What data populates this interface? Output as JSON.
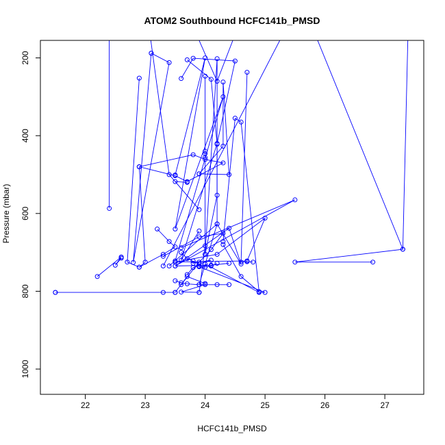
{
  "chart_data": {
    "type": "line",
    "title": "ATOM2 Southbound HCFC141b_PMSD",
    "xlabel": "HCFC141b_PMSD",
    "ylabel": "Pressure (mbar)",
    "xlim": [
      21.25,
      27.65
    ],
    "ylim": [
      1065,
      155
    ],
    "y_reversed": true,
    "x_ticks": [
      22,
      23,
      24,
      25,
      26,
      27
    ],
    "y_ticks": [
      200,
      400,
      600,
      800,
      1000
    ],
    "grid": false,
    "legend": "none",
    "marker": "open-circle",
    "color": "#0000ff",
    "series": [
      {
        "x": [
          22.4,
          22.4
        ],
        "y": [
          50,
          587
        ]
      },
      {
        "x": [
          22.6,
          22.5,
          22.6,
          22.2,
          22.6
        ],
        "y": [
          715,
          733,
          712,
          762,
          712
        ]
      },
      {
        "x": [
          21.5,
          23.3,
          23.5,
          21.5
        ],
        "y": [
          803,
          803,
          803,
          803
        ]
      },
      {
        "x": [
          23.1,
          23.4,
          22.8,
          23.1
        ],
        "y": [
          188,
          212,
          726,
          188
        ]
      },
      {
        "x": [
          22.9,
          22.7,
          22.9,
          23.0,
          22.9
        ],
        "y": [
          252,
          725,
          738,
          725,
          480
        ]
      },
      {
        "x": [
          22.9,
          23.5,
          23.7,
          24.3,
          24.0,
          23.8,
          22.9
        ],
        "y": [
          480,
          503,
          518,
          470,
          461,
          449,
          480
        ]
      },
      {
        "x": [
          23.2,
          23.4,
          23.5,
          23.3,
          22.9
        ],
        "y": [
          640,
          672,
          686,
          705,
          738
        ]
      },
      {
        "x": [
          23.5,
          24.0,
          23.5,
          24.3,
          23.5
        ],
        "y": [
          501,
          200,
          640,
          300,
          722
        ]
      },
      {
        "x": [
          23.6,
          23.8,
          24.5,
          24.2,
          23.6,
          23.9
        ],
        "y": [
          253,
          201,
          208,
          420,
          720,
          645
        ]
      },
      {
        "x": [
          23.7,
          24.1,
          24.2,
          24.2,
          23.9
        ],
        "y": [
          205,
          255,
          422,
          627,
          783
        ]
      },
      {
        "x": [
          23.3,
          23.9,
          24.3,
          24.1,
          23.9,
          23.6
        ],
        "y": [
          710,
          660,
          651,
          693,
          725,
          783
        ]
      },
      {
        "x": [
          23.5,
          23.6,
          23.7,
          23.9,
          24.2,
          24.4
        ],
        "y": [
          773,
          778,
          781,
          783,
          783,
          783
        ]
      },
      {
        "x": [
          23.9,
          23.6,
          24.0,
          24.0,
          23.7,
          23.5
        ],
        "y": [
          803,
          802,
          783,
          780,
          762,
          803
        ]
      },
      {
        "x": [
          24.0,
          24.0,
          24.0,
          24.0,
          24.0,
          23.9
        ],
        "y": [
          247,
          440,
          446,
          456,
          683,
          803
        ]
      },
      {
        "x": [
          23.9,
          24.3,
          24.3,
          24.4,
          23.9
        ],
        "y": [
          498,
          427,
          262,
          500,
          498
        ]
      },
      {
        "x": [
          24.0,
          24.2,
          24.2,
          24.0
        ],
        "y": [
          705,
          202,
          553,
          705
        ]
      },
      {
        "x": [
          24.3,
          24.5,
          24.6,
          24.9,
          24.6,
          24.3
        ],
        "y": [
          672,
          355,
          365,
          801,
          762,
          680
        ]
      },
      {
        "x": [
          24.7,
          24.6,
          24.7,
          24.8
        ],
        "y": [
          237,
          725,
          724,
          725
        ]
      },
      {
        "x": [
          23.5,
          24.7,
          25.0,
          24.2,
          23.5
        ],
        "y": [
          725,
          722,
          612,
          705,
          725
        ]
      },
      {
        "x": [
          23.6,
          25.5,
          23.5,
          24.1,
          24.4
        ],
        "y": [
          688,
          565,
          735,
          733,
          728
        ]
      },
      {
        "x": [
          24.0,
          24.9,
          25.0,
          23.9
        ],
        "y": [
          730,
          803,
          803,
          737
        ]
      },
      {
        "x": [
          23.3,
          25.6,
          27.3,
          25.5,
          26.8
        ],
        "y": [
          735,
          50,
          692,
          725,
          725
        ]
      },
      {
        "x": [
          27.3,
          27.4
        ],
        "y": [
          692,
          50
        ]
      },
      {
        "x": [
          23.5,
          24.4,
          24.6,
          24.2,
          23.4
        ],
        "y": [
          735,
          638,
          730,
          627,
          735
        ]
      },
      {
        "x": [
          23.7,
          23.8,
          23.9,
          24.0,
          24.1,
          24.2
        ],
        "y": [
          757,
          739,
          735,
          738,
          735,
          728
        ]
      },
      {
        "x": [
          23.6,
          23.7,
          23.9,
          24.1,
          23.8,
          23.8
        ],
        "y": [
          700,
          716,
          730,
          720,
          728,
          722
        ]
      },
      {
        "x": [
          23.0,
          23.4,
          23.9,
          23.5,
          23.7
        ],
        "y": [
          50,
          500,
          590,
          518,
          520
        ]
      },
      {
        "x": [
          23.6,
          24.2,
          24.6,
          24.8
        ],
        "y": [
          50,
          260,
          100,
          50
        ]
      }
    ]
  }
}
